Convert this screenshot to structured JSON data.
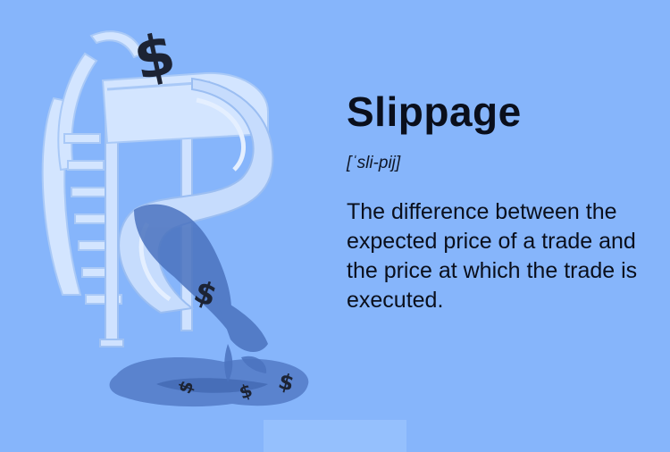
{
  "card": {
    "title": "Slippage",
    "pronunciation": "[ˈsli-pij]",
    "definition": "The difference between the expected price of a trade and the price at which the trade is executed."
  },
  "illustration": {
    "subject": "water-slide-with-dollar-signs",
    "colors": {
      "background": "#86b5fb",
      "slide_light": "#d3e5ff",
      "slide_mid": "#a9c9f7",
      "water": "#4b73bf",
      "dollar_dark": "#1c2334"
    }
  }
}
